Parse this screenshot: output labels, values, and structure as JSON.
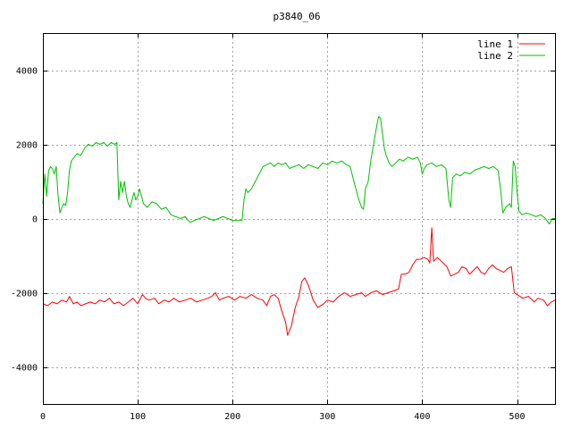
{
  "chart_data": {
    "type": "line",
    "title": "p3840_06",
    "xlabel": "",
    "ylabel": "",
    "xlim": [
      0,
      540
    ],
    "ylim": [
      -5000,
      5000
    ],
    "grid": true,
    "legend_position": "top-right",
    "x_ticks": [
      0,
      100,
      200,
      300,
      400,
      500
    ],
    "y_ticks": [
      -4000,
      -2000,
      0,
      2000,
      4000
    ],
    "x_tick_labels": [
      "0",
      "100",
      "200",
      "300",
      "400",
      "500"
    ],
    "y_tick_labels": [
      "-4000",
      "-2000",
      "0",
      "2000",
      "4000"
    ],
    "series": [
      {
        "name": "line 1",
        "color": "#ff0000",
        "points": [
          [
            0,
            -2300
          ],
          [
            5,
            -2350
          ],
          [
            10,
            -2250
          ],
          [
            15,
            -2300
          ],
          [
            20,
            -2200
          ],
          [
            25,
            -2250
          ],
          [
            28,
            -2100
          ],
          [
            32,
            -2300
          ],
          [
            36,
            -2250
          ],
          [
            40,
            -2350
          ],
          [
            45,
            -2300
          ],
          [
            50,
            -2250
          ],
          [
            55,
            -2300
          ],
          [
            60,
            -2200
          ],
          [
            65,
            -2250
          ],
          [
            70,
            -2150
          ],
          [
            75,
            -2300
          ],
          [
            80,
            -2250
          ],
          [
            85,
            -2350
          ],
          [
            90,
            -2250
          ],
          [
            95,
            -2150
          ],
          [
            100,
            -2300
          ],
          [
            105,
            -2050
          ],
          [
            108,
            -2150
          ],
          [
            112,
            -2200
          ],
          [
            118,
            -2150
          ],
          [
            122,
            -2300
          ],
          [
            128,
            -2200
          ],
          [
            133,
            -2250
          ],
          [
            138,
            -2150
          ],
          [
            144,
            -2250
          ],
          [
            150,
            -2200
          ],
          [
            156,
            -2150
          ],
          [
            162,
            -2250
          ],
          [
            168,
            -2200
          ],
          [
            174,
            -2150
          ],
          [
            178,
            -2100
          ],
          [
            182,
            -2000
          ],
          [
            186,
            -2200
          ],
          [
            190,
            -2150
          ],
          [
            196,
            -2100
          ],
          [
            202,
            -2200
          ],
          [
            208,
            -2100
          ],
          [
            214,
            -2150
          ],
          [
            220,
            -2050
          ],
          [
            226,
            -2150
          ],
          [
            232,
            -2200
          ],
          [
            236,
            -2350
          ],
          [
            240,
            -2100
          ],
          [
            244,
            -2050
          ],
          [
            248,
            -2150
          ],
          [
            252,
            -2500
          ],
          [
            256,
            -2800
          ],
          [
            258,
            -3150
          ],
          [
            262,
            -2900
          ],
          [
            266,
            -2400
          ],
          [
            270,
            -2100
          ],
          [
            273,
            -1700
          ],
          [
            276,
            -1600
          ],
          [
            280,
            -1800
          ],
          [
            285,
            -2200
          ],
          [
            290,
            -2400
          ],
          [
            296,
            -2300
          ],
          [
            300,
            -2200
          ],
          [
            306,
            -2250
          ],
          [
            312,
            -2100
          ],
          [
            318,
            -2000
          ],
          [
            324,
            -2100
          ],
          [
            330,
            -2050
          ],
          [
            336,
            -2000
          ],
          [
            340,
            -2100
          ],
          [
            346,
            -2000
          ],
          [
            352,
            -1950
          ],
          [
            358,
            -2050
          ],
          [
            364,
            -2000
          ],
          [
            370,
            -1950
          ],
          [
            375,
            -1900
          ],
          [
            378,
            -1500
          ],
          [
            382,
            -1500
          ],
          [
            386,
            -1450
          ],
          [
            390,
            -1250
          ],
          [
            394,
            -1100
          ],
          [
            398,
            -1100
          ],
          [
            402,
            -1050
          ],
          [
            406,
            -1100
          ],
          [
            408,
            -1200
          ],
          [
            410,
            -250
          ],
          [
            412,
            -1150
          ],
          [
            416,
            -1050
          ],
          [
            420,
            -1150
          ],
          [
            426,
            -1300
          ],
          [
            430,
            -1550
          ],
          [
            434,
            -1500
          ],
          [
            438,
            -1450
          ],
          [
            442,
            -1300
          ],
          [
            446,
            -1350
          ],
          [
            450,
            -1500
          ],
          [
            454,
            -1400
          ],
          [
            458,
            -1300
          ],
          [
            462,
            -1450
          ],
          [
            466,
            -1500
          ],
          [
            470,
            -1350
          ],
          [
            474,
            -1250
          ],
          [
            478,
            -1350
          ],
          [
            482,
            -1400
          ],
          [
            486,
            -1450
          ],
          [
            490,
            -1350
          ],
          [
            494,
            -1300
          ],
          [
            497,
            -2000
          ],
          [
            500,
            -2050
          ],
          [
            506,
            -2150
          ],
          [
            512,
            -2100
          ],
          [
            518,
            -2250
          ],
          [
            522,
            -2150
          ],
          [
            528,
            -2200
          ],
          [
            532,
            -2350
          ],
          [
            536,
            -2250
          ],
          [
            540,
            -2200
          ]
        ]
      },
      {
        "name": "line 2",
        "color": "#00c000",
        "points": [
          [
            0,
            400
          ],
          [
            2,
            1200
          ],
          [
            4,
            600
          ],
          [
            6,
            1300
          ],
          [
            8,
            1400
          ],
          [
            10,
            1350
          ],
          [
            12,
            1200
          ],
          [
            14,
            1400
          ],
          [
            16,
            600
          ],
          [
            18,
            150
          ],
          [
            20,
            300
          ],
          [
            22,
            400
          ],
          [
            24,
            350
          ],
          [
            26,
            700
          ],
          [
            28,
            1300
          ],
          [
            30,
            1550
          ],
          [
            33,
            1650
          ],
          [
            36,
            1750
          ],
          [
            40,
            1700
          ],
          [
            44,
            1900
          ],
          [
            48,
            2000
          ],
          [
            52,
            1950
          ],
          [
            56,
            2050
          ],
          [
            60,
            2000
          ],
          [
            64,
            2050
          ],
          [
            68,
            1950
          ],
          [
            72,
            2050
          ],
          [
            76,
            2000
          ],
          [
            78,
            2050
          ],
          [
            80,
            500
          ],
          [
            82,
            1000
          ],
          [
            84,
            700
          ],
          [
            86,
            1000
          ],
          [
            88,
            600
          ],
          [
            90,
            400
          ],
          [
            92,
            300
          ],
          [
            94,
            500
          ],
          [
            96,
            700
          ],
          [
            98,
            500
          ],
          [
            100,
            600
          ],
          [
            102,
            800
          ],
          [
            104,
            600
          ],
          [
            106,
            400
          ],
          [
            110,
            300
          ],
          [
            115,
            450
          ],
          [
            120,
            400
          ],
          [
            125,
            250
          ],
          [
            130,
            300
          ],
          [
            135,
            100
          ],
          [
            140,
            50
          ],
          [
            145,
            0
          ],
          [
            150,
            50
          ],
          [
            155,
            -100
          ],
          [
            160,
            -50
          ],
          [
            165,
            0
          ],
          [
            170,
            50
          ],
          [
            175,
            0
          ],
          [
            180,
            -50
          ],
          [
            185,
            0
          ],
          [
            190,
            50
          ],
          [
            195,
            0
          ],
          [
            200,
            -50
          ],
          [
            205,
            -50
          ],
          [
            210,
            -50
          ],
          [
            212,
            500
          ],
          [
            214,
            800
          ],
          [
            216,
            700
          ],
          [
            220,
            800
          ],
          [
            224,
            1000
          ],
          [
            228,
            1200
          ],
          [
            232,
            1400
          ],
          [
            236,
            1450
          ],
          [
            240,
            1500
          ],
          [
            244,
            1400
          ],
          [
            248,
            1500
          ],
          [
            252,
            1450
          ],
          [
            256,
            1500
          ],
          [
            260,
            1350
          ],
          [
            265,
            1400
          ],
          [
            270,
            1450
          ],
          [
            275,
            1350
          ],
          [
            280,
            1450
          ],
          [
            285,
            1400
          ],
          [
            290,
            1350
          ],
          [
            295,
            1500
          ],
          [
            300,
            1450
          ],
          [
            305,
            1550
          ],
          [
            310,
            1500
          ],
          [
            315,
            1550
          ],
          [
            320,
            1450
          ],
          [
            324,
            1400
          ],
          [
            328,
            1000
          ],
          [
            332,
            600
          ],
          [
            336,
            300
          ],
          [
            338,
            250
          ],
          [
            340,
            800
          ],
          [
            343,
            1000
          ],
          [
            346,
            1600
          ],
          [
            350,
            2200
          ],
          [
            352,
            2500
          ],
          [
            354,
            2750
          ],
          [
            356,
            2700
          ],
          [
            358,
            2300
          ],
          [
            360,
            1900
          ],
          [
            362,
            1700
          ],
          [
            365,
            1500
          ],
          [
            368,
            1400
          ],
          [
            372,
            1500
          ],
          [
            376,
            1600
          ],
          [
            380,
            1550
          ],
          [
            385,
            1650
          ],
          [
            390,
            1600
          ],
          [
            395,
            1650
          ],
          [
            398,
            1500
          ],
          [
            400,
            1200
          ],
          [
            402,
            1350
          ],
          [
            405,
            1450
          ],
          [
            410,
            1500
          ],
          [
            415,
            1400
          ],
          [
            420,
            1450
          ],
          [
            425,
            1350
          ],
          [
            428,
            500
          ],
          [
            430,
            300
          ],
          [
            432,
            1100
          ],
          [
            436,
            1200
          ],
          [
            440,
            1150
          ],
          [
            445,
            1250
          ],
          [
            450,
            1200
          ],
          [
            455,
            1300
          ],
          [
            460,
            1350
          ],
          [
            465,
            1400
          ],
          [
            470,
            1350
          ],
          [
            475,
            1400
          ],
          [
            480,
            1300
          ],
          [
            483,
            700
          ],
          [
            485,
            150
          ],
          [
            488,
            300
          ],
          [
            492,
            400
          ],
          [
            494,
            300
          ],
          [
            496,
            1550
          ],
          [
            498,
            1400
          ],
          [
            500,
            700
          ],
          [
            502,
            200
          ],
          [
            505,
            100
          ],
          [
            510,
            150
          ],
          [
            515,
            100
          ],
          [
            520,
            50
          ],
          [
            525,
            100
          ],
          [
            530,
            0
          ],
          [
            534,
            -150
          ],
          [
            537,
            0
          ],
          [
            540,
            0
          ]
        ]
      }
    ]
  }
}
